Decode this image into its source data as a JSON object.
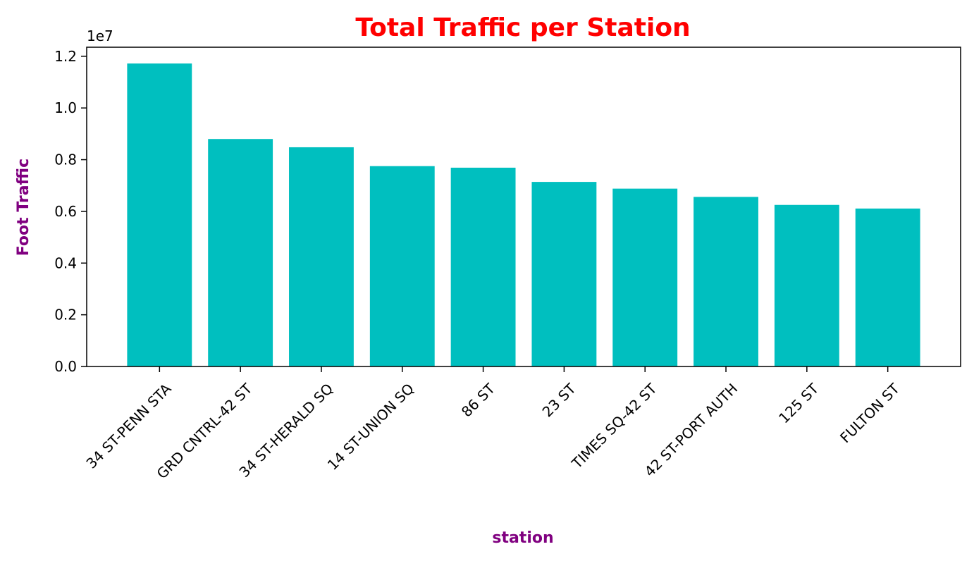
{
  "chart_data": {
    "type": "bar",
    "title": "Total Traffic per Station",
    "xlabel": "station",
    "ylabel": "Foot Traffic",
    "y_offset_label": "1e7",
    "y_scale": 10000000,
    "categories": [
      "34 ST-PENN STA",
      "GRD CNTRL-42 ST",
      "34 ST-HERALD SQ",
      "14 ST-UNION SQ",
      "86 ST",
      "23 ST",
      "TIMES SQ-42 ST",
      "42 ST-PORT AUTH",
      "125 ST",
      "FULTON ST"
    ],
    "values": [
      11720000,
      8800000,
      8480000,
      7750000,
      7690000,
      7140000,
      6880000,
      6560000,
      6250000,
      6110000
    ],
    "ylim": [
      0,
      12350000
    ],
    "yticks": [
      0.0,
      0.2,
      0.4,
      0.6,
      0.8,
      1.0,
      1.2
    ],
    "ytick_labels": [
      "0.0",
      "0.2",
      "0.4",
      "0.6",
      "0.8",
      "1.0",
      "1.2"
    ],
    "grid": false,
    "bar_color": "#00BFBF",
    "title_color": "#FF0000",
    "axis_label_color": "#800080"
  }
}
